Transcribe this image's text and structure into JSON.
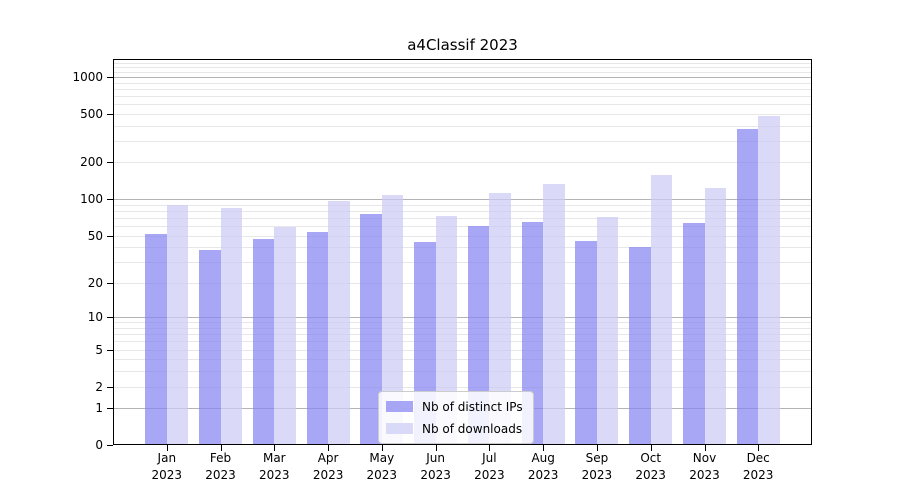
{
  "chart_data": {
    "type": "bar",
    "title": "a4Classif 2023",
    "yscale": "symlog (log(1+v))",
    "ylim": [
      0,
      1400
    ],
    "y_ticks": [
      0,
      1,
      2,
      5,
      10,
      20,
      50,
      100,
      200,
      500,
      1000
    ],
    "grid": true,
    "legend_position": "lower center",
    "categories": [
      "Jan 2023",
      "Feb 2023",
      "Mar 2023",
      "Apr 2023",
      "May 2023",
      "Jun 2023",
      "Jul 2023",
      "Aug 2023",
      "Sep 2023",
      "Oct 2023",
      "Nov 2023",
      "Dec 2023"
    ],
    "series": [
      {
        "name": "Nb of distinct IPs",
        "color": "rgba(133,133,241,0.72)",
        "values": [
          52,
          38,
          47,
          54,
          76,
          44,
          60,
          65,
          45,
          40,
          63,
          373
        ]
      },
      {
        "name": "Nb of downloads",
        "color": "rgba(204,204,245,0.72)",
        "values": [
          90,
          84,
          59,
          96,
          109,
          72,
          113,
          133,
          71,
          158,
          124,
          480
        ]
      }
    ]
  },
  "colors": {
    "grid_major": "#b4b4b4",
    "grid_minor": "#e7e7e7",
    "axis": "#000000",
    "background": "#ffffff"
  }
}
